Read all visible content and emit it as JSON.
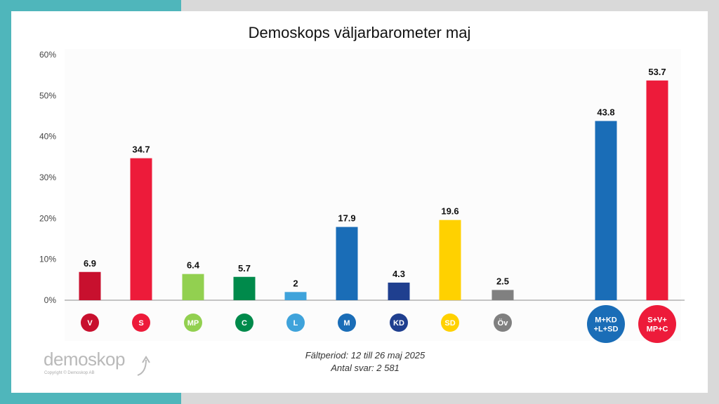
{
  "chart_data": {
    "type": "bar",
    "title": "Demoskops väljarbarometer maj",
    "ylim": [
      0,
      60
    ],
    "yticks": [
      0,
      10,
      20,
      30,
      40,
      50,
      60
    ],
    "ytick_labels": [
      "0%",
      "10%",
      "20%",
      "30%",
      "40%",
      "50%",
      "60%"
    ],
    "grid": false,
    "categories": [
      "V",
      "S",
      "MP",
      "C",
      "L",
      "M",
      "KD",
      "SD",
      "Öv",
      "M+KD\n+L+SD",
      "S+V+\nMP+C"
    ],
    "values": [
      6.9,
      34.7,
      6.4,
      5.7,
      2,
      17.9,
      4.3,
      19.6,
      2.5,
      43.8,
      53.7
    ],
    "data_labels": [
      "6.9",
      "34.7",
      "6.4",
      "5.7",
      "2",
      "17.9",
      "4.3",
      "19.6",
      "2.5",
      "43.8",
      "53.7"
    ],
    "colors": [
      "#c8102e",
      "#ed1b3a",
      "#92d050",
      "#008a4b",
      "#3fa3db",
      "#1a6db7",
      "#1f3f8f",
      "#ffd100",
      "#808080",
      "#1a6db7",
      "#ed1b3a"
    ]
  },
  "footer": {
    "period": "Fältperiod: 12 till 26 maj 2025",
    "respondents": "Antal svar: 2 581"
  },
  "logo": {
    "word": "demoskop",
    "copyright": "Copyright © Demoskop AB"
  },
  "colors": {
    "teal_band": "#4fb6bb",
    "background": "#d9d9d9"
  }
}
